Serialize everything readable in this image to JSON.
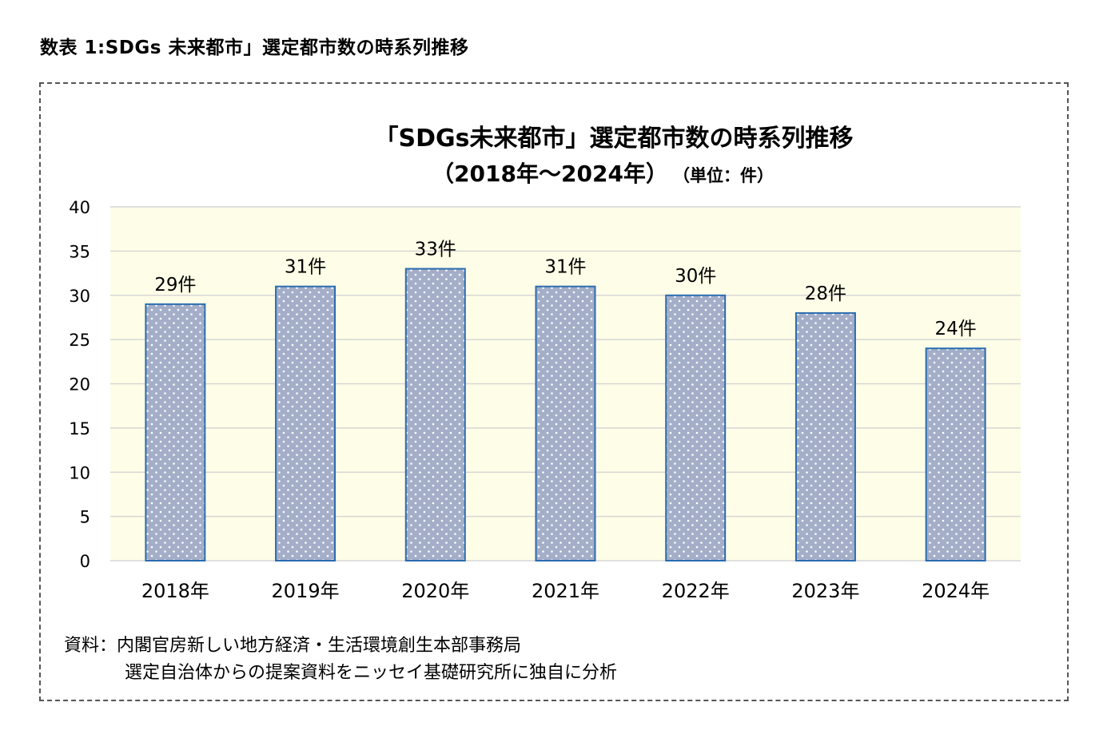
{
  "figure": {
    "heading": "数表 1:SDGs 未来都市」選定都市数の時系列推移"
  },
  "chart_data": {
    "type": "bar",
    "title": "「SDGs未来都市」選定都市数の時系列推移",
    "subtitle": "（2018年～2024年）",
    "unit_note": "（単位：件）",
    "categories": [
      "2018年",
      "2019年",
      "2020年",
      "2021年",
      "2022年",
      "2023年",
      "2024年"
    ],
    "values": [
      29,
      31,
      33,
      31,
      30,
      28,
      24
    ],
    "data_labels": [
      "29件",
      "31件",
      "33件",
      "31件",
      "30件",
      "28件",
      "24件"
    ],
    "ylim": [
      0,
      40
    ],
    "yticks": [
      "0",
      "5",
      "10",
      "15",
      "20",
      "25",
      "30",
      "35",
      "40"
    ],
    "grid": true,
    "colors": {
      "plot_background": "#fefee8",
      "bar_fill": "#a4aec8",
      "bar_border": "#2a6cb0",
      "bar_dots": "#ffffff",
      "gridline": "#d6d6d6"
    }
  },
  "source": {
    "line1": "資料：内閣官房新しい地方経済・生活環境創生本部事務局",
    "line2": "選定自治体からの提案資料をニッセイ基礎研究所に独自に分析"
  }
}
